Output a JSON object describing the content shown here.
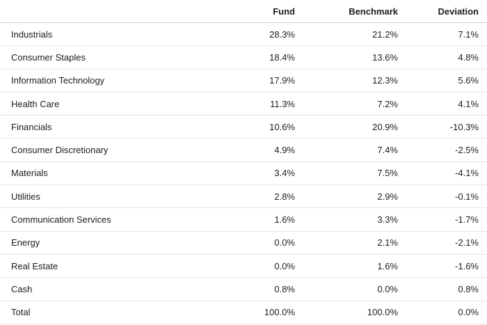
{
  "columns": {
    "sector": "",
    "fund": "Fund",
    "benchmark": "Benchmark",
    "deviation": "Deviation"
  },
  "rows": [
    {
      "sector": "Industrials",
      "fund": "28.3%",
      "benchmark": "21.2%",
      "deviation": "7.1%"
    },
    {
      "sector": "Consumer Staples",
      "fund": "18.4%",
      "benchmark": "13.6%",
      "deviation": "4.8%"
    },
    {
      "sector": "Information Technology",
      "fund": "17.9%",
      "benchmark": "12.3%",
      "deviation": "5.6%"
    },
    {
      "sector": "Health Care",
      "fund": "11.3%",
      "benchmark": "7.2%",
      "deviation": "4.1%"
    },
    {
      "sector": "Financials",
      "fund": "10.6%",
      "benchmark": "20.9%",
      "deviation": "-10.3%"
    },
    {
      "sector": "Consumer Discretionary",
      "fund": "4.9%",
      "benchmark": "7.4%",
      "deviation": "-2.5%"
    },
    {
      "sector": "Materials",
      "fund": "3.4%",
      "benchmark": "7.5%",
      "deviation": "-4.1%"
    },
    {
      "sector": "Utilities",
      "fund": "2.8%",
      "benchmark": "2.9%",
      "deviation": "-0.1%"
    },
    {
      "sector": "Communication Services",
      "fund": "1.6%",
      "benchmark": "3.3%",
      "deviation": "-1.7%"
    },
    {
      "sector": "Energy",
      "fund": "0.0%",
      "benchmark": "2.1%",
      "deviation": "-2.1%"
    },
    {
      "sector": "Real Estate",
      "fund": "0.0%",
      "benchmark": "1.6%",
      "deviation": "-1.6%"
    },
    {
      "sector": "Cash",
      "fund": "0.8%",
      "benchmark": "0.0%",
      "deviation": "0.8%"
    },
    {
      "sector": "Total",
      "fund": "100.0%",
      "benchmark": "100.0%",
      "deviation": "0.0%"
    }
  ],
  "colors": {
    "text": "#1c1c1c",
    "header_rule": "#c8c8c8",
    "row_rule": "#e3e3e3",
    "background": "#ffffff"
  }
}
